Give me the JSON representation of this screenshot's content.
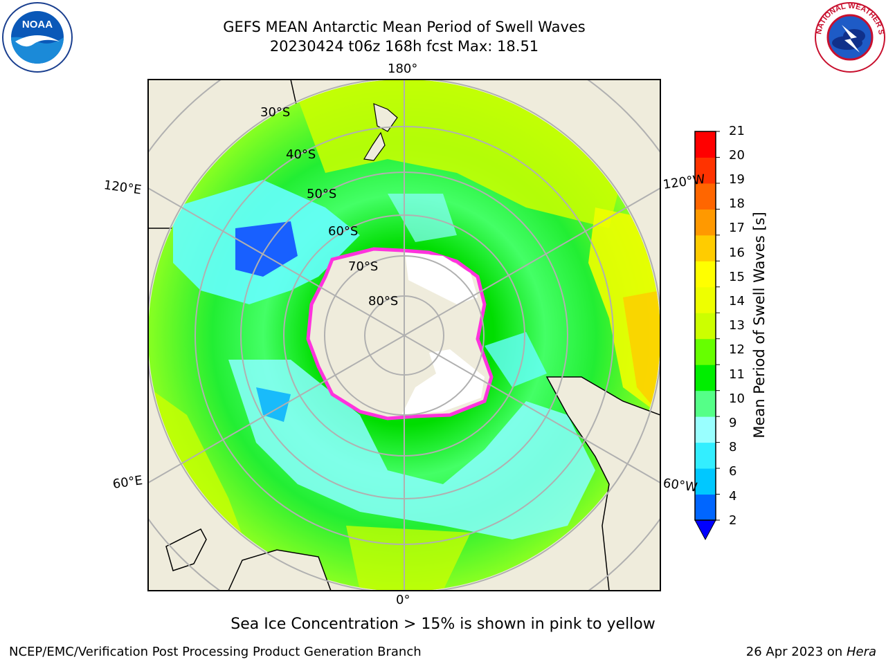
{
  "title": {
    "line1": "GEFS MEAN Antarctic Mean Period of Swell Waves",
    "line2": "20230424 t06z 168h fcst   Max: 18.51"
  },
  "map": {
    "longitude_labels": [
      "180°",
      "120°E",
      "120°W",
      "60°E",
      "60°W",
      "0°"
    ],
    "latitude_labels": [
      "30°S",
      "40°S",
      "50°S",
      "60°S",
      "70°S",
      "80°S"
    ],
    "land_color": "#efecdc",
    "ice_edge_color": "#ff33dd"
  },
  "colorbar": {
    "label": "Mean Period of Swell Waves [s]",
    "ticks": [
      "21",
      "20",
      "19",
      "18",
      "17",
      "16",
      "15",
      "14",
      "13",
      "12",
      "11",
      "10",
      "9",
      "8",
      "6",
      "4",
      "2"
    ],
    "colors_bottom_to_top": [
      "#0066ff",
      "#00c8ff",
      "#33eeff",
      "#99ffff",
      "#55ff88",
      "#00ee00",
      "#66ff00",
      "#ccff00",
      "#eeff00",
      "#ffff00",
      "#ffcc00",
      "#ff9900",
      "#ff6600",
      "#ff3300",
      "#ff0000"
    ],
    "under_color": "#0000ff"
  },
  "note": "Sea Ice Concentration > 15% is shown in pink to yellow",
  "footer": {
    "left": "NCEP/EMC/Verification Post Processing Product Generation Branch",
    "right_date": "26 Apr 2023 on ",
    "right_host": "Hera"
  },
  "logos": {
    "noaa": "NOAA",
    "nws": "NATIONAL WEATHER SERVICE"
  }
}
